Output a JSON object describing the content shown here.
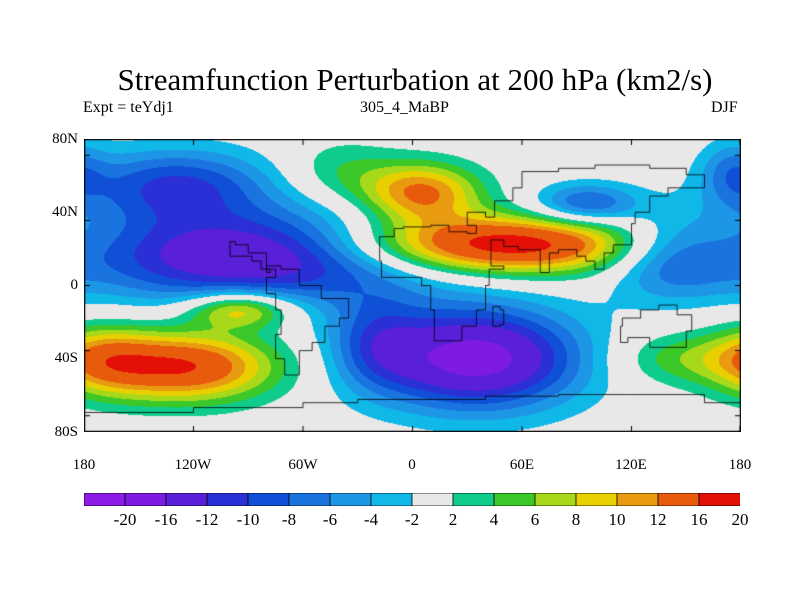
{
  "title": "Streamfunction Perturbation at 200 hPa (km2/s)",
  "subtitle_left": "Expt = teYdj1",
  "subtitle_center": "305_4_MaBP",
  "subtitle_right": "DJF",
  "y_ticks": [
    "80N",
    "40N",
    "0",
    "40S",
    "80S"
  ],
  "x_ticks": [
    "180",
    "120W",
    "60W",
    "0",
    "60E",
    "120E",
    "180"
  ],
  "colorbar": {
    "labels": [
      "-20",
      "-16",
      "-12",
      "-10",
      "-8",
      "-6",
      "-4",
      "-2",
      "2",
      "4",
      "6",
      "8",
      "10",
      "12",
      "16",
      "20"
    ],
    "colors": [
      "#8c1ce6",
      "#7d1be1",
      "#5a1fd8",
      "#2a2fd6",
      "#1050d6",
      "#1a74e0",
      "#1e96e6",
      "#10b8e8",
      "#e8e8e8",
      "#10cc8c",
      "#3cc828",
      "#a8d81a",
      "#e8d000",
      "#e89a10",
      "#e85a0c",
      "#e41008"
    ]
  },
  "map_data": {
    "lon_range": [
      -180,
      180
    ],
    "lat_range": [
      -90,
      90
    ],
    "features": [
      {
        "lon": -130,
        "lat": 62,
        "value": -10,
        "sx": 38,
        "sy": 16
      },
      {
        "lon": -85,
        "lat": 18,
        "value": -16,
        "sx": 70,
        "sy": 20
      },
      {
        "lon": 140,
        "lat": 18,
        "value": -8,
        "sx": 25,
        "sy": 18
      },
      {
        "lon": 175,
        "lat": 70,
        "value": -5,
        "sx": 12,
        "sy": 14
      },
      {
        "lon": 35,
        "lat": -45,
        "value": -18,
        "sx": 40,
        "sy": 22
      },
      {
        "lon": -20,
        "lat": -35,
        "value": -6,
        "sx": 18,
        "sy": 20
      },
      {
        "lon": 95,
        "lat": 50,
        "value": -9,
        "sx": 20,
        "sy": 9
      },
      {
        "lon": 45,
        "lat": 25,
        "value": 20,
        "sx": 60,
        "sy": 13
      },
      {
        "lon": 5,
        "lat": 57,
        "value": 13,
        "sx": 23,
        "sy": 13
      },
      {
        "lon": -125,
        "lat": -50,
        "value": 16,
        "sx": 35,
        "sy": 15
      },
      {
        "lon": -95,
        "lat": -15,
        "value": 11,
        "sx": 20,
        "sy": 8
      },
      {
        "lon": 145,
        "lat": -45,
        "value": 5,
        "sx": 25,
        "sy": 12
      },
      {
        "lon": -170,
        "lat": -45,
        "value": 8,
        "sx": 20,
        "sy": 15
      },
      {
        "lon": -40,
        "lat": 70,
        "value": 4,
        "sx": 22,
        "sy": 14
      }
    ]
  }
}
